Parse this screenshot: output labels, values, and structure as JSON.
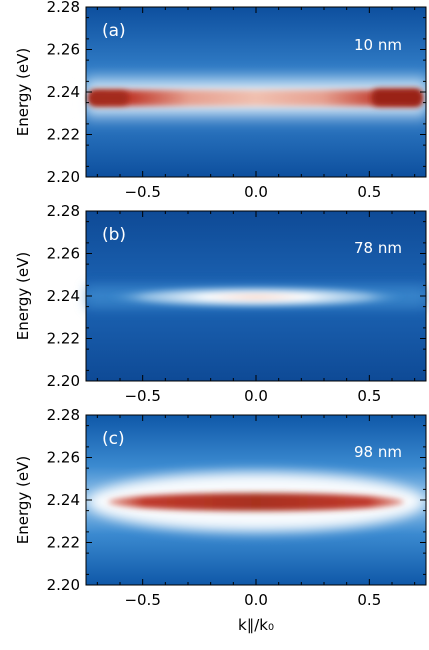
{
  "chart_data": [
    {
      "type": "heatmap",
      "panel_label": "(a)",
      "annotation": "10 nm",
      "xlabel": "",
      "ylabel": "Energy (eV)",
      "xlim": [
        -0.75,
        0.75
      ],
      "ylim": [
        2.2,
        2.28
      ],
      "xticks": [
        -0.5,
        0.0,
        0.5
      ],
      "xtick_labels": [
        "−0.5",
        "0.0",
        "0.5"
      ],
      "yticks": [
        2.2,
        2.22,
        2.24,
        2.26,
        2.28
      ],
      "ytick_labels": [
        "2.20",
        "2.22",
        "2.24",
        "2.26",
        "2.28"
      ],
      "peak_energy": 2.237,
      "band_profile": "flat-edges-bright",
      "colormap": [
        "#0a3f8c",
        "#3f8fd2",
        "#ffffff",
        "#c0392b"
      ]
    },
    {
      "type": "heatmap",
      "panel_label": "(b)",
      "annotation": "78 nm",
      "xlabel": "",
      "ylabel": "Energy (eV)",
      "xlim": [
        -0.75,
        0.75
      ],
      "ylim": [
        2.2,
        2.28
      ],
      "xticks": [
        -0.5,
        0.0,
        0.5
      ],
      "xtick_labels": [
        "−0.5",
        "0.0",
        "0.5"
      ],
      "yticks": [
        2.2,
        2.22,
        2.24,
        2.26,
        2.28
      ],
      "ytick_labels": [
        "2.20",
        "2.22",
        "2.24",
        "2.26",
        "2.28"
      ],
      "peak_energy": 2.239,
      "band_profile": "center-localized",
      "colormap": [
        "#0a3f8c",
        "#3f8fd2",
        "#ffffff",
        "#c0392b"
      ]
    },
    {
      "type": "heatmap",
      "panel_label": "(c)",
      "annotation": "98 nm",
      "xlabel": "k∥/k₀",
      "ylabel": "Energy (eV)",
      "xlim": [
        -0.75,
        0.75
      ],
      "ylim": [
        2.2,
        2.28
      ],
      "xticks": [
        -0.5,
        0.0,
        0.5
      ],
      "xtick_labels": [
        "−0.5",
        "0.0",
        "0.5"
      ],
      "yticks": [
        2.2,
        2.22,
        2.24,
        2.26,
        2.28
      ],
      "ytick_labels": [
        "2.20",
        "2.22",
        "2.24",
        "2.26",
        "2.28"
      ],
      "peak_energy": 2.238,
      "band_profile": "broad-flat",
      "colormap": [
        "#0a3f8c",
        "#3f8fd2",
        "#ffffff",
        "#c0392b"
      ]
    }
  ]
}
